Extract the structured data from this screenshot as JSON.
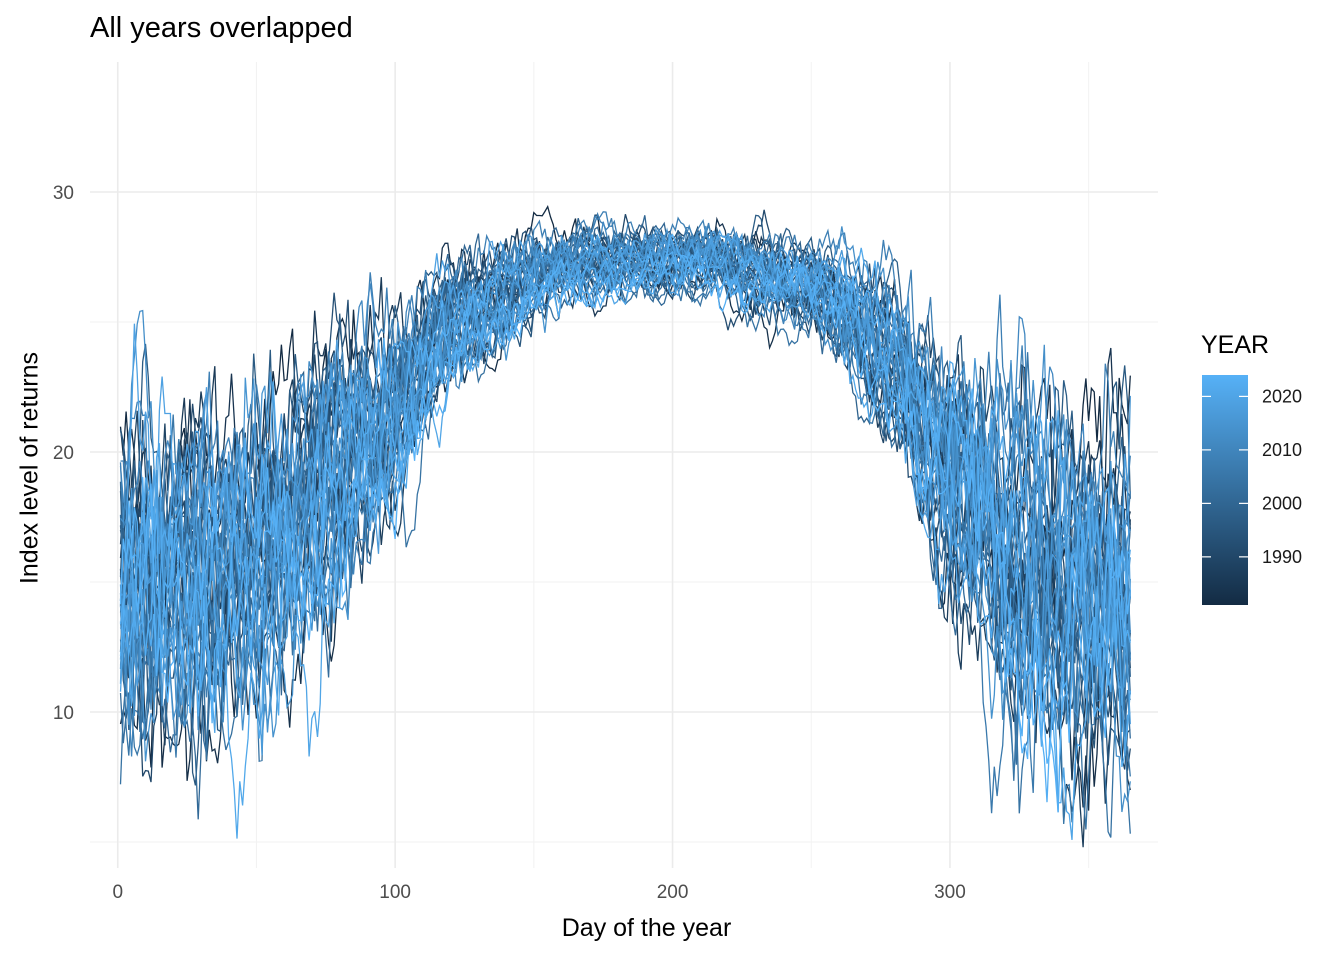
{
  "chart_data": {
    "type": "line",
    "title": "All years overlapped",
    "xlabel": "Day of the year",
    "ylabel": "Index level of returns",
    "xlim": [
      -10,
      375
    ],
    "ylim": [
      4,
      35
    ],
    "x_ticks": [
      0,
      100,
      200,
      300
    ],
    "x_tick_labels": [
      "0",
      "100",
      "200",
      "300"
    ],
    "y_ticks": [
      10,
      20,
      30
    ],
    "y_tick_labels": [
      "10",
      "20",
      "30"
    ],
    "grid": true,
    "color_scale": {
      "title": "YEAR",
      "min": 1981,
      "max": 2024,
      "low_color": "#132B43",
      "high_color": "#56B1F7",
      "ticks": [
        1990,
        2000,
        2010,
        2020
      ],
      "tick_labels": [
        "1990",
        "2000",
        "2010",
        "2020"
      ]
    },
    "legend_position": "right",
    "series_years": [
      1981,
      1982,
      1983,
      1984,
      1985,
      1986,
      1987,
      1988,
      1989,
      1990,
      1991,
      1992,
      1993,
      1994,
      1995,
      1996,
      1997,
      1998,
      1999,
      2000,
      2001,
      2002,
      2003,
      2004,
      2005,
      2006,
      2007,
      2008,
      2009,
      2010,
      2011,
      2012,
      2013,
      2014,
      2015,
      2016,
      2017,
      2018,
      2019,
      2020,
      2021,
      2022,
      2023,
      2024
    ],
    "days": 365,
    "seasonal_envelope": {
      "x": [
        1,
        30,
        60,
        90,
        120,
        150,
        180,
        200,
        220,
        250,
        280,
        300,
        330,
        365
      ],
      "y_center": [
        15.5,
        16,
        17.5,
        21,
        25,
        27,
        27.5,
        27.5,
        27.3,
        26.5,
        24,
        19.5,
        16,
        15
      ],
      "y_spread": [
        8,
        7.5,
        7,
        5.5,
        3,
        2,
        1.5,
        1.5,
        1.6,
        2,
        3.5,
        6,
        7.5,
        8
      ]
    }
  }
}
